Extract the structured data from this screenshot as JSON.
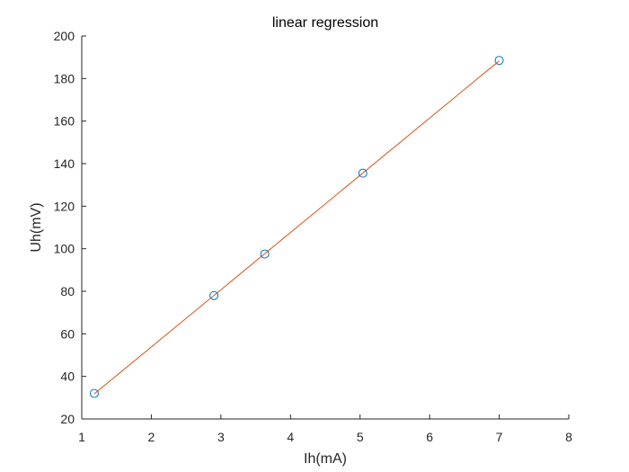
{
  "chart_data": {
    "type": "scatter",
    "title": "linear regression",
    "xlabel": "Ih(mA)",
    "ylabel": "Uh(mV)",
    "xlim": [
      1,
      8
    ],
    "ylim": [
      20,
      200
    ],
    "xticks": [
      1,
      2,
      3,
      4,
      5,
      6,
      7,
      8
    ],
    "yticks": [
      20,
      40,
      60,
      80,
      100,
      120,
      140,
      160,
      180,
      200
    ],
    "grid": false,
    "legend": false,
    "series": [
      {
        "kind": "scatter",
        "marker": "circle-open",
        "color": "#0072BD",
        "x": [
          1.18,
          2.9,
          3.63,
          5.04,
          7.0
        ],
        "y": [
          32,
          78,
          97.5,
          135.5,
          188.5
        ]
      },
      {
        "kind": "line",
        "color": "#D95319",
        "x": [
          1.18,
          7.0
        ],
        "y": [
          31.8,
          188.3
        ]
      }
    ]
  }
}
